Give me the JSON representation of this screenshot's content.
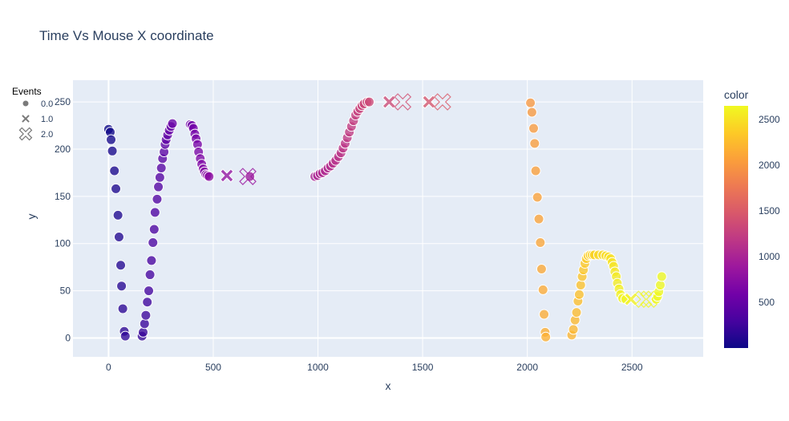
{
  "chart_data": {
    "type": "scatter",
    "title": "Time Vs Mouse X coordinate",
    "xlabel": "x",
    "ylabel": "y",
    "xlim": [
      -170,
      2840
    ],
    "ylim": [
      -20,
      273
    ],
    "x_ticks": [
      0,
      500,
      1000,
      1500,
      2000,
      2500
    ],
    "y_ticks": [
      0,
      50,
      100,
      150,
      200,
      250
    ],
    "y_tick_labels": [
      "0",
      "50",
      "100",
      "150",
      "200",
      "250"
    ],
    "grid": true,
    "legend": {
      "title": "Events",
      "placement": "left",
      "items": [
        {
          "label": "0.0",
          "symbol": "circle"
        },
        {
          "label": "1.0",
          "symbol": "x"
        },
        {
          "label": "2.0",
          "symbol": "x-open"
        }
      ]
    },
    "colorbar": {
      "title": "color",
      "ticks": [
        500,
        1000,
        1500,
        2000,
        2500
      ],
      "range": [
        0,
        2650
      ],
      "colors": [
        "#0d0887",
        "#46039f",
        "#7201a8",
        "#9c179e",
        "#bd3786",
        "#d8576b",
        "#ed7953",
        "#fb9f3a",
        "#fdca26",
        "#f0f921"
      ]
    },
    "series": [
      {
        "symbol": "circle",
        "color_by_time": true,
        "points": [
          [
            0,
            221,
            0
          ],
          [
            8,
            218,
            15
          ],
          [
            12,
            210,
            30
          ],
          [
            18,
            198,
            45
          ],
          [
            28,
            177,
            60
          ],
          [
            35,
            158,
            75
          ],
          [
            45,
            130,
            90
          ],
          [
            50,
            107,
            105
          ],
          [
            58,
            77,
            120
          ],
          [
            62,
            55,
            135
          ],
          [
            68,
            31,
            150
          ],
          [
            75,
            7,
            165
          ],
          [
            80,
            2,
            180
          ],
          [
            160,
            2,
            200
          ],
          [
            165,
            6,
            215
          ],
          [
            172,
            15,
            230
          ],
          [
            178,
            24,
            245
          ],
          [
            185,
            38,
            260
          ],
          [
            192,
            50,
            275
          ],
          [
            198,
            67,
            290
          ],
          [
            205,
            82,
            305
          ],
          [
            212,
            101,
            320
          ],
          [
            218,
            115,
            335
          ],
          [
            222,
            133,
            350
          ],
          [
            232,
            147,
            365
          ],
          [
            238,
            160,
            380
          ],
          [
            245,
            170,
            395
          ],
          [
            252,
            180,
            410
          ],
          [
            258,
            190,
            425
          ],
          [
            265,
            197,
            440
          ],
          [
            270,
            205,
            455
          ],
          [
            275,
            210,
            470
          ],
          [
            282,
            215,
            485
          ],
          [
            290,
            220,
            500
          ],
          [
            298,
            224,
            515
          ],
          [
            305,
            227,
            530
          ],
          [
            390,
            226,
            560
          ],
          [
            398,
            225,
            575
          ],
          [
            405,
            222,
            590
          ],
          [
            412,
            216,
            605
          ],
          [
            418,
            211,
            620
          ],
          [
            425,
            205,
            635
          ],
          [
            430,
            197,
            650
          ],
          [
            438,
            190,
            665
          ],
          [
            445,
            184,
            680
          ],
          [
            452,
            179,
            695
          ],
          [
            458,
            176,
            710
          ],
          [
            465,
            173,
            725
          ],
          [
            472,
            172,
            740
          ],
          [
            480,
            171,
            755
          ],
          [
            675,
            171,
            900
          ],
          [
            985,
            171,
            1000
          ],
          [
            998,
            172,
            1015
          ],
          [
            1010,
            174,
            1030
          ],
          [
            1022,
            175,
            1045
          ],
          [
            1035,
            177,
            1060
          ],
          [
            1048,
            180,
            1075
          ],
          [
            1060,
            182,
            1090
          ],
          [
            1072,
            185,
            1105
          ],
          [
            1085,
            188,
            1120
          ],
          [
            1098,
            192,
            1135
          ],
          [
            1110,
            196,
            1150
          ],
          [
            1120,
            201,
            1165
          ],
          [
            1130,
            206,
            1180
          ],
          [
            1140,
            212,
            1195
          ],
          [
            1150,
            218,
            1210
          ],
          [
            1160,
            224,
            1225
          ],
          [
            1170,
            230,
            1240
          ],
          [
            1180,
            236,
            1255
          ],
          [
            1190,
            240,
            1270
          ],
          [
            1200,
            243,
            1285
          ],
          [
            1210,
            246,
            1300
          ],
          [
            1220,
            248,
            1315
          ],
          [
            1235,
            250,
            1330
          ],
          [
            1245,
            250,
            1345
          ],
          [
            2015,
            249,
            2000
          ],
          [
            2022,
            239,
            2015
          ],
          [
            2030,
            222,
            2030
          ],
          [
            2035,
            206,
            2045
          ],
          [
            2040,
            177,
            2060
          ],
          [
            2048,
            149,
            2075
          ],
          [
            2055,
            126,
            2090
          ],
          [
            2062,
            101,
            2105
          ],
          [
            2068,
            73,
            2120
          ],
          [
            2075,
            51,
            2135
          ],
          [
            2080,
            25,
            2150
          ],
          [
            2085,
            6,
            2165
          ],
          [
            2088,
            1,
            2180
          ],
          [
            2212,
            3,
            2210
          ],
          [
            2220,
            9,
            2225
          ],
          [
            2228,
            19,
            2240
          ],
          [
            2235,
            27,
            2255
          ],
          [
            2242,
            39,
            2270
          ],
          [
            2248,
            46,
            2285
          ],
          [
            2255,
            56,
            2300
          ],
          [
            2262,
            65,
            2315
          ],
          [
            2268,
            72,
            2330
          ],
          [
            2275,
            79,
            2345
          ],
          [
            2282,
            84,
            2360
          ],
          [
            2290,
            87,
            2375
          ],
          [
            2300,
            88,
            2390
          ],
          [
            2310,
            88,
            2405
          ],
          [
            2320,
            88,
            2420
          ],
          [
            2340,
            88,
            2435
          ],
          [
            2360,
            88,
            2450
          ],
          [
            2375,
            87,
            2465
          ],
          [
            2388,
            86,
            2480
          ],
          [
            2398,
            84,
            2495
          ],
          [
            2405,
            80,
            2510
          ],
          [
            2412,
            76,
            2525
          ],
          [
            2418,
            70,
            2540
          ],
          [
            2425,
            65,
            2555
          ],
          [
            2430,
            58,
            2570
          ],
          [
            2438,
            52,
            2585
          ],
          [
            2445,
            46,
            2600
          ],
          [
            2455,
            42,
            2615
          ],
          [
            2470,
            41,
            2630
          ],
          [
            2615,
            41,
            2640
          ],
          [
            2622,
            44,
            2645
          ],
          [
            2628,
            49,
            2648
          ],
          [
            2635,
            56,
            2650
          ],
          [
            2642,
            65,
            2650
          ]
        ]
      },
      {
        "symbol": "x",
        "points": [
          [
            565,
            172,
            830
          ],
          [
            1340,
            250,
            1350
          ],
          [
            1530,
            250,
            1450
          ],
          [
            2495,
            41,
            2600
          ]
        ]
      },
      {
        "symbol": "x-open",
        "points": [
          [
            665,
            171,
            860
          ],
          [
            1405,
            250,
            1400
          ],
          [
            1595,
            250,
            1500
          ],
          [
            2555,
            41,
            2630
          ],
          [
            2580,
            41,
            2640
          ]
        ]
      }
    ]
  }
}
